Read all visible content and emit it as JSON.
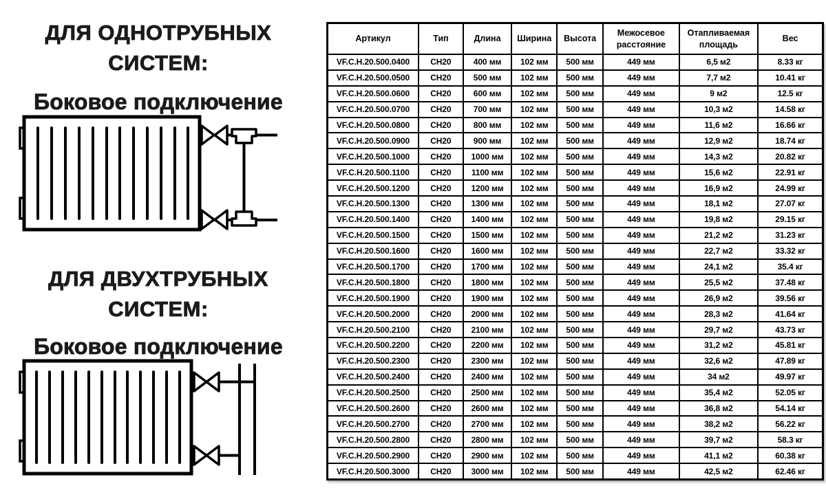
{
  "page": {
    "background": "#ffffff"
  },
  "colors": {
    "heading_text": "#1b1b1d",
    "table_text": "#000000",
    "table_border": "#000000",
    "background": "#ffffff"
  },
  "left_panel": {
    "sections": [
      {
        "heading_line1": "ДЛЯ ОДНОТРУБНЫХ",
        "heading_line2": "СИСТЕМ:",
        "subheading": "Боковое подключение",
        "diagram": "single-pipe-side-connection"
      },
      {
        "heading_line1": "ДЛЯ ДВУХТРУБНЫХ",
        "heading_line2": "СИСТЕМ:",
        "subheading": "Боковое подключение",
        "diagram": "two-pipe-side-connection"
      }
    ]
  },
  "table": {
    "columns": [
      "Артикул",
      "Тип",
      "Длина",
      "Ширина",
      "Высота",
      "Межосевое расстояние",
      "Отапливаемая площадь",
      "Вес"
    ],
    "rows": [
      [
        "VF.C.H.20.500.0400",
        "CH20",
        "400 мм",
        "102 мм",
        "500 мм",
        "449 мм",
        "6,5 м2",
        "8.33 кг"
      ],
      [
        "VF.C.H.20.500.0500",
        "CH20",
        "500 мм",
        "102 мм",
        "500 мм",
        "449 мм",
        "7,7 м2",
        "10.41 кг"
      ],
      [
        "VF.C.H.20.500.0600",
        "CH20",
        "600 мм",
        "102 мм",
        "500 мм",
        "449 мм",
        "9 м2",
        "12.5 кг"
      ],
      [
        "VF.C.H.20.500.0700",
        "CH20",
        "700 мм",
        "102 мм",
        "500 мм",
        "449 мм",
        "10,3 м2",
        "14.58 кг"
      ],
      [
        "VF.C.H.20.500.0800",
        "CH20",
        "800 мм",
        "102 мм",
        "500 мм",
        "449 мм",
        "11,6 м2",
        "16.66 кг"
      ],
      [
        "VF.C.H.20.500.0900",
        "CH20",
        "900 мм",
        "102 мм",
        "500 мм",
        "449 мм",
        "12,9 м2",
        "18.74 кг"
      ],
      [
        "VF.C.H.20.500.1000",
        "CH20",
        "1000 мм",
        "102 мм",
        "500 мм",
        "449 мм",
        "14,3 м2",
        "20.82 кг"
      ],
      [
        "VF.C.H.20.500.1100",
        "CH20",
        "1100 мм",
        "102 мм",
        "500 мм",
        "449 мм",
        "15,6 м2",
        "22.91 кг"
      ],
      [
        "VF.C.H.20.500.1200",
        "CH20",
        "1200 мм",
        "102 мм",
        "500 мм",
        "449 мм",
        "16,9 м2",
        "24.99 кг"
      ],
      [
        "VF.C.H.20.500.1300",
        "CH20",
        "1300 мм",
        "102 мм",
        "500 мм",
        "449 мм",
        "18,1 м2",
        "27.07 кг"
      ],
      [
        "VF.C.H.20.500.1400",
        "CH20",
        "1400 мм",
        "102 мм",
        "500 мм",
        "449 мм",
        "19,8 м2",
        "29.15 кг"
      ],
      [
        "VF.C.H.20.500.1500",
        "CH20",
        "1500 мм",
        "102 мм",
        "500 мм",
        "449 мм",
        "21,2 м2",
        "31.23 кг"
      ],
      [
        "VF.C.H.20.500.1600",
        "CH20",
        "1600 мм",
        "102 мм",
        "500 мм",
        "449 мм",
        "22,7 м2",
        "33.32 кг"
      ],
      [
        "VF.C.H.20.500.1700",
        "CH20",
        "1700 мм",
        "102 мм",
        "500 мм",
        "449 мм",
        "24,1 м2",
        "35.4 кг"
      ],
      [
        "VF.C.H.20.500.1800",
        "CH20",
        "1800 мм",
        "102 мм",
        "500 мм",
        "449 мм",
        "25,5 м2",
        "37.48 кг"
      ],
      [
        "VF.C.H.20.500.1900",
        "CH20",
        "1900 мм",
        "102 мм",
        "500 мм",
        "449 мм",
        "26,9 м2",
        "39.56 кг"
      ],
      [
        "VF.C.H.20.500.2000",
        "CH20",
        "2000 мм",
        "102 мм",
        "500 мм",
        "449 мм",
        "28,3 м2",
        "41.64 кг"
      ],
      [
        "VF.C.H.20.500.2100",
        "CH20",
        "2100 мм",
        "102 мм",
        "500 мм",
        "449 мм",
        "29,7 м2",
        "43.73 кг"
      ],
      [
        "VF.C.H.20.500.2200",
        "CH20",
        "2200 мм",
        "102 мм",
        "500 мм",
        "449 мм",
        "31,2 м2",
        "45.81 кг"
      ],
      [
        "VF.C.H.20.500.2300",
        "CH20",
        "2300 мм",
        "102 мм",
        "500 мм",
        "449 мм",
        "32,6 м2",
        "47.89 кг"
      ],
      [
        "VF.C.H.20.500.2400",
        "CH20",
        "2400 мм",
        "102 мм",
        "500 мм",
        "449 мм",
        "34 м2",
        "49.97 кг"
      ],
      [
        "VF.C.H.20.500.2500",
        "CH20",
        "2500 мм",
        "102 мм",
        "500 мм",
        "449 мм",
        "35,4 м2",
        "52.05 кг"
      ],
      [
        "VF.C.H.20.500.2600",
        "CH20",
        "2600 мм",
        "102 мм",
        "500 мм",
        "449 мм",
        "36,8 м2",
        "54.14 кг"
      ],
      [
        "VF.C.H.20.500.2700",
        "CH20",
        "2700 мм",
        "102 мм",
        "500 мм",
        "449 мм",
        "38,2 м2",
        "56.22 кг"
      ],
      [
        "VF.C.H.20.500.2800",
        "CH20",
        "2800 мм",
        "102 мм",
        "500 мм",
        "449 мм",
        "39,7 м2",
        "58.3 кг"
      ],
      [
        "VF.C.H.20.500.2900",
        "CH20",
        "2900 мм",
        "102 мм",
        "500 мм",
        "449 мм",
        "41,1 м2",
        "60.38 кг"
      ],
      [
        "VF.C.H.20.500.3000",
        "CH20",
        "3000 мм",
        "102 мм",
        "500 мм",
        "449 мм",
        "42,5 м2",
        "62.46 кг"
      ]
    ]
  }
}
